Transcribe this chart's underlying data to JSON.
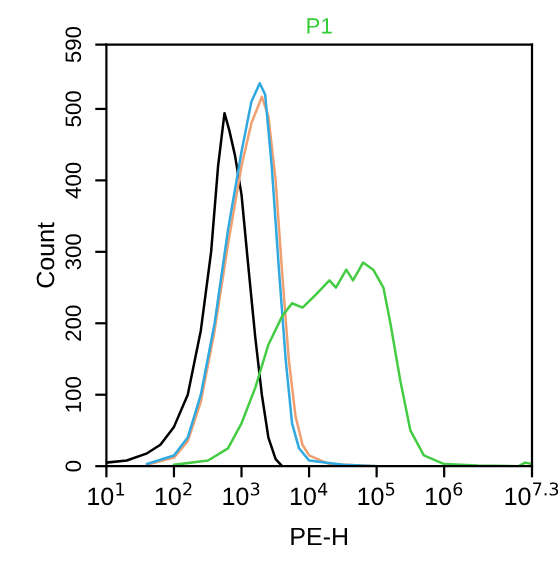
{
  "chart_data": {
    "type": "line",
    "title": "P1",
    "xlabel": "PE-H",
    "ylabel": "Count",
    "log": "x",
    "xlim": [
      10,
      19952623
    ],
    "ylim": [
      0,
      590
    ],
    "xticks": [
      {
        "value": 10,
        "label": "10$^{1}$"
      },
      {
        "value": 100,
        "label": "10$^{2}$"
      },
      {
        "value": 1000,
        "label": "10$^{3}$"
      },
      {
        "value": 10000,
        "label": "10$^{4}$"
      },
      {
        "value": 100000,
        "label": "10$^{5}$"
      },
      {
        "value": 1000000,
        "label": "10$^{6}$"
      },
      {
        "value": 19952623,
        "label": "10$^{7.3}$"
      }
    ],
    "yticks": [
      0,
      100,
      200,
      300,
      400,
      500,
      590
    ],
    "grid": false,
    "legend": false,
    "marker": "none",
    "line_style": "solid",
    "series": [
      {
        "color": "#000000",
        "x": [
          10,
          20,
          40,
          63,
          100,
          160,
          250,
          355,
          450,
          560,
          660,
          800,
          1000,
          1260,
          1600,
          2000,
          2500,
          3200,
          4000
        ],
        "values": [
          5,
          8,
          18,
          30,
          55,
          100,
          190,
          300,
          420,
          494,
          470,
          435,
          380,
          280,
          180,
          100,
          40,
          10,
          0
        ]
      },
      {
        "color": "#f0a070",
        "x": [
          40,
          100,
          160,
          250,
          400,
          630,
          1000,
          1400,
          2000,
          2500,
          3200,
          4000,
          5000,
          6300,
          8000,
          10000,
          20000,
          100000
        ],
        "values": [
          2,
          12,
          35,
          90,
          190,
          310,
          420,
          480,
          517,
          490,
          400,
          270,
          150,
          70,
          30,
          15,
          3,
          0
        ]
      },
      {
        "color": "#30a8e0",
        "x": [
          40,
          100,
          160,
          250,
          400,
          630,
          1000,
          1400,
          1860,
          2240,
          2800,
          3550,
          4500,
          5600,
          7100,
          10000,
          32000,
          100000
        ],
        "values": [
          3,
          15,
          40,
          100,
          200,
          330,
          440,
          510,
          536,
          520,
          420,
          280,
          150,
          60,
          25,
          8,
          2,
          0
        ]
      },
      {
        "color": "#44cc44",
        "x": [
          100,
          320,
          630,
          1000,
          1600,
          2500,
          4000,
          5600,
          8000,
          12600,
          20000,
          25000,
          35500,
          44700,
          63000,
          89000,
          126000,
          160000,
          224000,
          316000,
          500000,
          1000000,
          3160000,
          12600000,
          15800000,
          19952623
        ],
        "values": [
          2,
          8,
          25,
          60,
          110,
          170,
          210,
          228,
          222,
          240,
          260,
          250,
          275,
          260,
          285,
          275,
          250,
          200,
          120,
          50,
          15,
          3,
          1,
          0,
          5,
          3
        ]
      }
    ]
  }
}
